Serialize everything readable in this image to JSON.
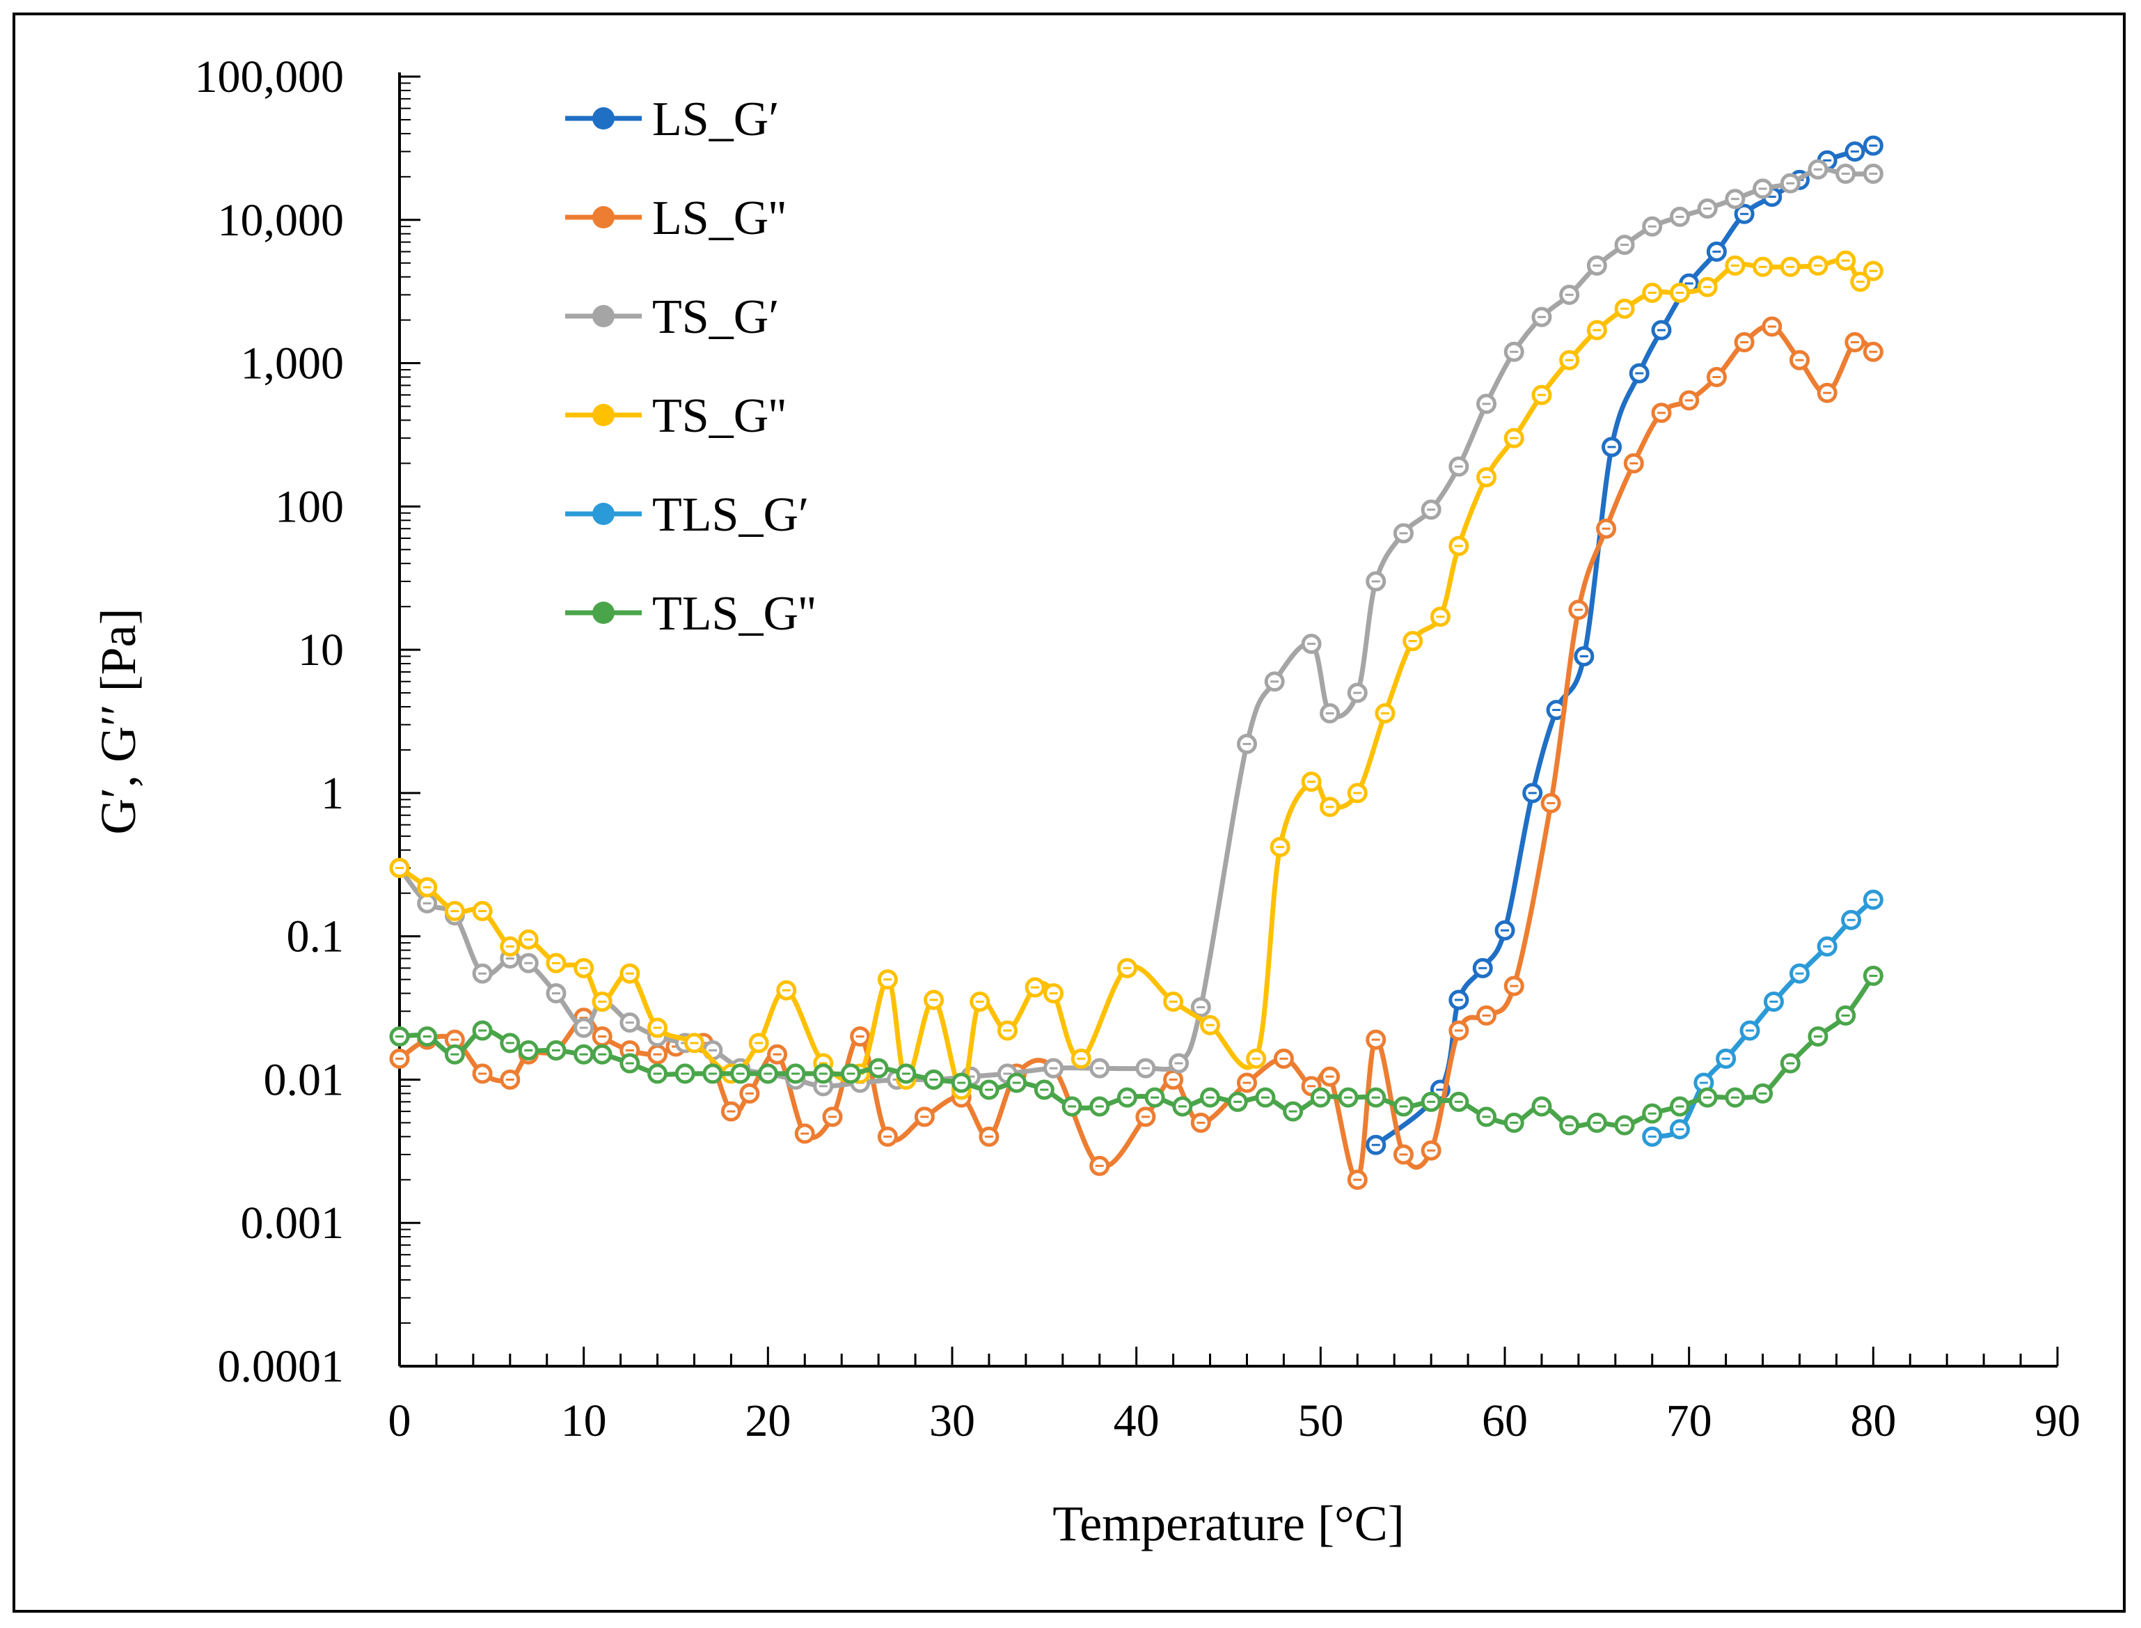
{
  "chart_data": {
    "type": "line",
    "title": "",
    "xlabel": "Temperature [°C]",
    "ylabel": "G′, G′′ [Pa]",
    "xlim": [
      0,
      90
    ],
    "ylim": [
      0.0001,
      100000
    ],
    "yscale": "log",
    "x_ticks": [
      0,
      10,
      20,
      30,
      40,
      50,
      60,
      70,
      80,
      90
    ],
    "x_tick_labels": [
      "0",
      "10",
      "20",
      "30",
      "40",
      "50",
      "60",
      "70",
      "80",
      "90"
    ],
    "y_ticks": [
      0.0001,
      0.001,
      0.01,
      0.1,
      1,
      10,
      100,
      1000,
      10000,
      100000
    ],
    "y_tick_labels": [
      "0.0001",
      "0.001",
      "0.01",
      "0.1",
      "1",
      "10",
      "100",
      "1,000",
      "10,000",
      "100,000"
    ],
    "legend_position": "top-left",
    "series": [
      {
        "name": "LS_G′",
        "color": "#1f6fc5",
        "x": [
          53,
          56.5,
          57.5,
          58.8,
          60,
          61.5,
          62.8,
          64.3,
          65.8,
          67.3,
          68.5,
          70,
          71.5,
          73,
          74.5,
          76,
          77.5,
          79,
          80
        ],
        "y": [
          0.0035,
          0.0085,
          0.036,
          0.06,
          0.11,
          1.0,
          3.8,
          9.0,
          260,
          850,
          1700,
          3600,
          6000,
          11000,
          14500,
          19000,
          26000,
          30000,
          33000
        ]
      },
      {
        "name": "LS_G''",
        "color": "#ed7d31",
        "x": [
          0,
          1.5,
          3,
          4.5,
          6,
          7,
          8.5,
          10,
          11,
          12.5,
          14,
          15,
          16.5,
          18,
          19,
          20.5,
          22,
          23.5,
          25,
          26.5,
          28.5,
          30.5,
          32,
          33.5,
          35.5,
          38,
          40.5,
          42,
          43.5,
          46,
          48,
          49.5,
          50.5,
          52,
          53,
          54.5,
          56,
          57.5,
          59,
          60.5,
          62.5,
          64,
          65.5,
          67,
          68.5,
          70,
          71.5,
          73,
          74.5,
          76,
          77.5,
          79,
          80
        ],
        "y": [
          0.014,
          0.019,
          0.019,
          0.011,
          0.01,
          0.015,
          0.016,
          0.027,
          0.02,
          0.016,
          0.015,
          0.017,
          0.018,
          0.006,
          0.008,
          0.015,
          0.0042,
          0.0055,
          0.02,
          0.004,
          0.0055,
          0.0075,
          0.004,
          0.011,
          0.012,
          0.0025,
          0.0055,
          0.01,
          0.005,
          0.0095,
          0.014,
          0.009,
          0.0105,
          0.002,
          0.019,
          0.003,
          0.0032,
          0.022,
          0.028,
          0.045,
          0.85,
          19,
          70,
          200,
          450,
          550,
          800,
          1400,
          1800,
          1050,
          620,
          1400,
          1200
        ]
      },
      {
        "name": "TS_G′",
        "color": "#a5a5a5",
        "x": [
          0,
          1.5,
          3,
          4.5,
          6,
          7,
          8.5,
          10,
          11,
          12.5,
          14,
          15.5,
          17,
          18.5,
          20,
          21.5,
          23,
          25,
          27,
          29,
          31,
          33,
          35.5,
          38,
          40.5,
          42.3,
          43.5,
          46,
          47.5,
          49.5,
          50.5,
          52,
          53,
          54.5,
          56,
          57.5,
          59,
          60.5,
          62,
          63.5,
          65,
          66.5,
          68,
          69.5,
          71,
          72.5,
          74,
          75.5,
          77,
          78.5,
          80
        ],
        "y": [
          0.3,
          0.17,
          0.14,
          0.055,
          0.07,
          0.065,
          0.04,
          0.023,
          0.035,
          0.025,
          0.02,
          0.018,
          0.016,
          0.012,
          0.011,
          0.01,
          0.009,
          0.0095,
          0.01,
          0.01,
          0.0105,
          0.011,
          0.012,
          0.012,
          0.012,
          0.013,
          0.032,
          2.2,
          6,
          11,
          3.6,
          5,
          30,
          65,
          95,
          190,
          520,
          1200,
          2100,
          3000,
          4800,
          6700,
          9000,
          10500,
          12000,
          14000,
          16500,
          18000,
          22500,
          21000,
          21000
        ]
      },
      {
        "name": "TS_G''",
        "color": "#ffc000",
        "x": [
          0,
          1.5,
          3,
          4.5,
          6,
          7,
          8.5,
          10,
          11,
          12.5,
          14,
          16,
          18,
          19.5,
          21,
          23,
          25,
          26.5,
          27.5,
          29,
          30.5,
          31.5,
          33,
          34.5,
          35.5,
          37,
          39.5,
          42,
          44,
          46.5,
          47.8,
          49.5,
          50.5,
          52,
          53.5,
          55,
          56.5,
          57.5,
          59,
          60.5,
          62,
          63.5,
          65,
          66.5,
          68,
          69.5,
          71,
          72.5,
          74,
          75.5,
          77,
          78.5,
          79.3,
          80
        ],
        "y": [
          0.3,
          0.22,
          0.15,
          0.15,
          0.085,
          0.095,
          0.065,
          0.06,
          0.035,
          0.055,
          0.023,
          0.018,
          0.011,
          0.018,
          0.042,
          0.013,
          0.011,
          0.05,
          0.01,
          0.036,
          0.0085,
          0.035,
          0.022,
          0.044,
          0.04,
          0.014,
          0.06,
          0.035,
          0.024,
          0.014,
          0.42,
          1.2,
          0.8,
          1.0,
          3.6,
          11.5,
          17,
          53,
          160,
          300,
          600,
          1050,
          1700,
          2400,
          3100,
          3100,
          3400,
          4800,
          4700,
          4700,
          4800,
          5200,
          3700,
          4400
        ]
      },
      {
        "name": "TLS_G′",
        "color": "#2b9ad8",
        "x": [
          68,
          69.5,
          70.8,
          72,
          73.3,
          74.6,
          76,
          77.5,
          78.8,
          80
        ],
        "y": [
          0.004,
          0.0045,
          0.0095,
          0.014,
          0.022,
          0.035,
          0.055,
          0.085,
          0.13,
          0.18
        ]
      },
      {
        "name": "TLS_G''",
        "color": "#4aa54a",
        "x": [
          0,
          1.5,
          3,
          4.5,
          6,
          7,
          8.5,
          10,
          11,
          12.5,
          14,
          15.5,
          17,
          18.5,
          20,
          21.5,
          23,
          24.5,
          26,
          27.5,
          29,
          30.5,
          32,
          33.5,
          35,
          36.5,
          38,
          39.5,
          41,
          42.5,
          44,
          45.5,
          47,
          48.5,
          50,
          51.5,
          53,
          54.5,
          56,
          57.5,
          59,
          60.5,
          62,
          63.5,
          65,
          66.5,
          68,
          69.5,
          71,
          72.5,
          74,
          75.5,
          77,
          78.5,
          80
        ],
        "y": [
          0.02,
          0.02,
          0.015,
          0.022,
          0.018,
          0.016,
          0.016,
          0.015,
          0.015,
          0.013,
          0.011,
          0.011,
          0.011,
          0.011,
          0.011,
          0.011,
          0.011,
          0.011,
          0.012,
          0.011,
          0.01,
          0.0095,
          0.0085,
          0.0095,
          0.0085,
          0.0065,
          0.0065,
          0.0075,
          0.0075,
          0.0065,
          0.0075,
          0.007,
          0.0075,
          0.006,
          0.0075,
          0.0075,
          0.0075,
          0.0065,
          0.007,
          0.007,
          0.0055,
          0.005,
          0.0065,
          0.0048,
          0.005,
          0.0048,
          0.0058,
          0.0065,
          0.0075,
          0.0075,
          0.008,
          0.013,
          0.02,
          0.028,
          0.053
        ]
      }
    ]
  }
}
